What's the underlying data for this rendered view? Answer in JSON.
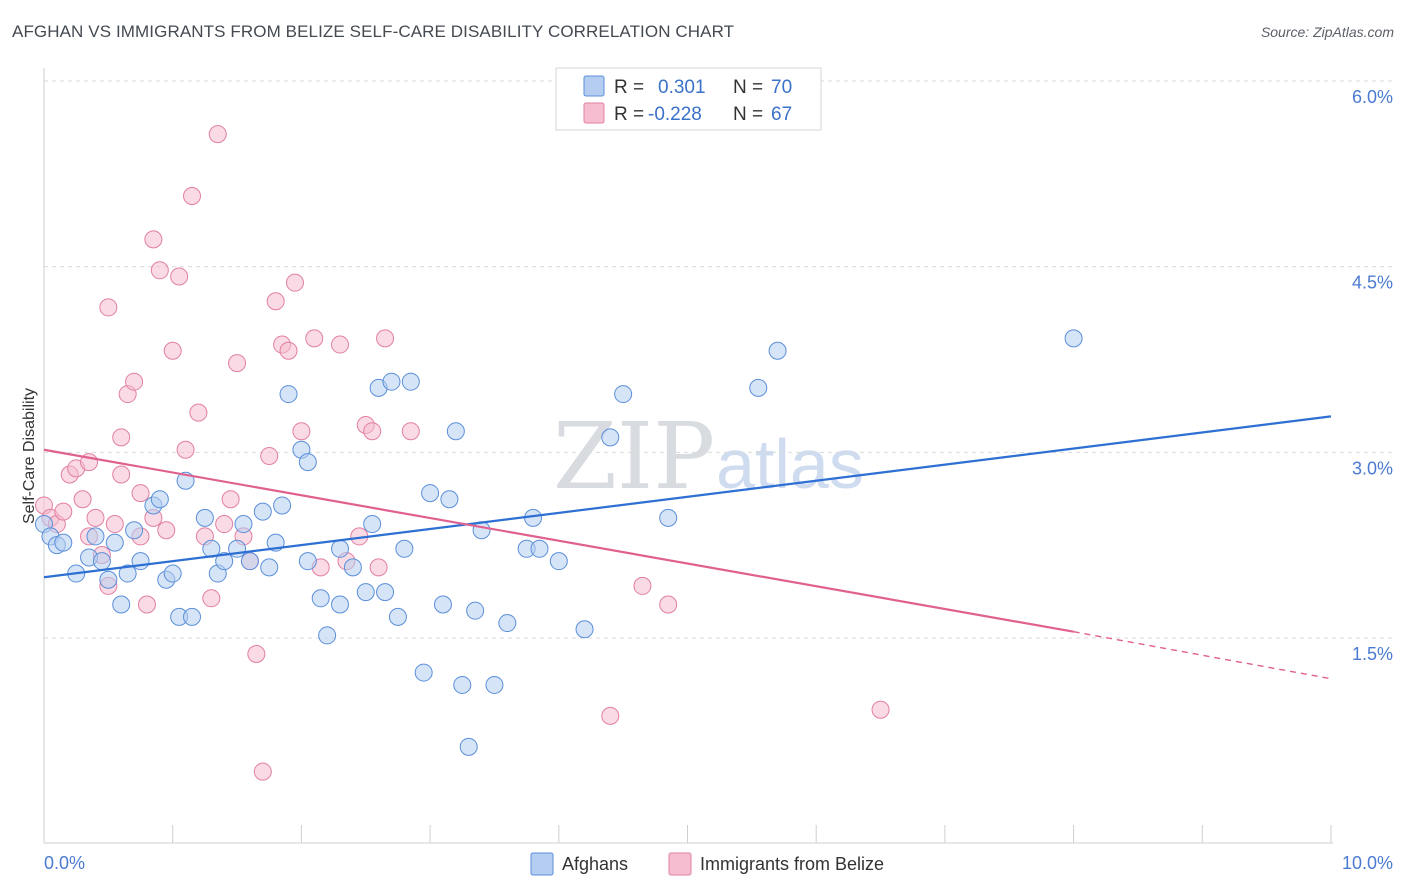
{
  "title": "AFGHAN VS IMMIGRANTS FROM BELIZE SELF-CARE DISABILITY CORRELATION CHART",
  "source": "Source: ZipAtlas.com",
  "watermark": {
    "zip": "ZIP",
    "atlas": "atlas"
  },
  "chart_data": {
    "type": "scatter",
    "xlabel": "",
    "ylabel": "Self-Care Disability",
    "xlim": [
      0,
      10
    ],
    "ylim": [
      0,
      6.2
    ],
    "x_tick_labels": {
      "left": "0.0%",
      "right": "10.0%"
    },
    "y_ticks": [
      {
        "value": 6.0,
        "label": "6.0%"
      },
      {
        "value": 4.5,
        "label": "4.5%"
      },
      {
        "value": 3.0,
        "label": "3.0%"
      },
      {
        "value": 1.5,
        "label": "1.5%"
      }
    ],
    "legend": {
      "rows": [
        {
          "r_label": "R =",
          "r_value": "0.301",
          "n_label": "N =",
          "n_value": "70"
        },
        {
          "r_label": "R =",
          "r_value": "-0.228",
          "n_label": "N =",
          "n_value": "67"
        }
      ]
    },
    "colors": {
      "afghans_fill": "#b4cdf1",
      "afghans_stroke": "#5b8fd9",
      "afghans_line": "#2d6fd3",
      "belize_fill": "#f6bdd0",
      "belize_stroke": "#e27fa3",
      "belize_line": "#e0608f",
      "tick": "#4b7bd1"
    },
    "series": [
      {
        "name": "Afghans",
        "trend": {
          "x0": 0.0,
          "y0": 2.12,
          "x1": 10.0,
          "y1": 3.42
        },
        "points": [
          [
            0.0,
            2.55
          ],
          [
            0.05,
            2.45
          ],
          [
            0.1,
            2.38
          ],
          [
            0.15,
            2.4
          ],
          [
            0.25,
            2.15
          ],
          [
            0.35,
            2.28
          ],
          [
            0.4,
            2.45
          ],
          [
            0.45,
            2.25
          ],
          [
            0.5,
            2.1
          ],
          [
            0.55,
            2.4
          ],
          [
            0.6,
            1.9
          ],
          [
            0.65,
            2.15
          ],
          [
            0.7,
            2.5
          ],
          [
            0.75,
            2.25
          ],
          [
            0.85,
            2.7
          ],
          [
            0.9,
            2.75
          ],
          [
            0.95,
            2.1
          ],
          [
            1.0,
            2.15
          ],
          [
            1.05,
            1.8
          ],
          [
            1.1,
            2.9
          ],
          [
            1.15,
            1.8
          ],
          [
            1.25,
            2.6
          ],
          [
            1.3,
            2.35
          ],
          [
            1.35,
            2.15
          ],
          [
            1.4,
            2.25
          ],
          [
            1.5,
            2.35
          ],
          [
            1.55,
            2.55
          ],
          [
            1.6,
            2.25
          ],
          [
            1.7,
            2.65
          ],
          [
            1.75,
            2.2
          ],
          [
            1.8,
            2.4
          ],
          [
            1.85,
            2.7
          ],
          [
            1.9,
            3.6
          ],
          [
            2.0,
            3.15
          ],
          [
            2.05,
            3.05
          ],
          [
            2.05,
            2.25
          ],
          [
            2.15,
            1.95
          ],
          [
            2.2,
            1.65
          ],
          [
            2.3,
            1.9
          ],
          [
            2.3,
            2.35
          ],
          [
            2.4,
            2.2
          ],
          [
            2.5,
            2.0
          ],
          [
            2.55,
            2.55
          ],
          [
            2.6,
            3.65
          ],
          [
            2.65,
            2.0
          ],
          [
            2.7,
            3.7
          ],
          [
            2.75,
            1.8
          ],
          [
            2.8,
            2.35
          ],
          [
            2.85,
            3.7
          ],
          [
            2.95,
            1.35
          ],
          [
            3.0,
            2.8
          ],
          [
            3.1,
            1.9
          ],
          [
            3.15,
            2.75
          ],
          [
            3.2,
            3.3
          ],
          [
            3.25,
            1.25
          ],
          [
            3.3,
            0.75
          ],
          [
            3.35,
            1.85
          ],
          [
            3.4,
            2.5
          ],
          [
            3.5,
            1.25
          ],
          [
            3.6,
            1.75
          ],
          [
            3.75,
            2.35
          ],
          [
            3.85,
            2.35
          ],
          [
            3.8,
            2.6
          ],
          [
            4.0,
            2.25
          ],
          [
            4.2,
            1.7
          ],
          [
            4.4,
            3.25
          ],
          [
            4.5,
            3.6
          ],
          [
            4.85,
            2.6
          ],
          [
            5.55,
            3.65
          ],
          [
            5.7,
            3.95
          ],
          [
            8.0,
            4.05
          ]
        ]
      },
      {
        "name": "Immigrants from Belize",
        "trend": {
          "x0": 0.0,
          "y0": 3.15,
          "x1": 8.0,
          "y1": 1.68,
          "dash_x1": 10.0,
          "dash_y1": 1.3
        },
        "points": [
          [
            0.0,
            2.7
          ],
          [
            0.05,
            2.6
          ],
          [
            0.1,
            2.55
          ],
          [
            0.15,
            2.65
          ],
          [
            0.2,
            2.95
          ],
          [
            0.25,
            3.0
          ],
          [
            0.3,
            2.75
          ],
          [
            0.35,
            3.05
          ],
          [
            0.35,
            2.45
          ],
          [
            0.4,
            2.6
          ],
          [
            0.45,
            2.3
          ],
          [
            0.5,
            2.05
          ],
          [
            0.5,
            4.3
          ],
          [
            0.55,
            2.55
          ],
          [
            0.6,
            2.95
          ],
          [
            0.6,
            3.25
          ],
          [
            0.65,
            3.6
          ],
          [
            0.7,
            3.7
          ],
          [
            0.75,
            2.45
          ],
          [
            0.75,
            2.8
          ],
          [
            0.8,
            1.9
          ],
          [
            0.85,
            4.85
          ],
          [
            0.85,
            2.6
          ],
          [
            0.9,
            4.6
          ],
          [
            0.95,
            2.5
          ],
          [
            1.0,
            3.95
          ],
          [
            1.05,
            4.55
          ],
          [
            1.1,
            3.15
          ],
          [
            1.15,
            5.2
          ],
          [
            1.2,
            3.45
          ],
          [
            1.25,
            2.45
          ],
          [
            1.3,
            1.95
          ],
          [
            1.35,
            5.7
          ],
          [
            1.4,
            2.55
          ],
          [
            1.45,
            2.75
          ],
          [
            1.5,
            3.85
          ],
          [
            1.55,
            2.45
          ],
          [
            1.6,
            2.25
          ],
          [
            1.65,
            1.5
          ],
          [
            1.7,
            0.55
          ],
          [
            1.75,
            3.1
          ],
          [
            1.8,
            4.35
          ],
          [
            1.85,
            4.0
          ],
          [
            1.9,
            3.95
          ],
          [
            1.95,
            4.5
          ],
          [
            2.0,
            3.3
          ],
          [
            2.1,
            4.05
          ],
          [
            2.15,
            2.2
          ],
          [
            2.3,
            4.0
          ],
          [
            2.35,
            2.25
          ],
          [
            2.45,
            2.45
          ],
          [
            2.5,
            3.35
          ],
          [
            2.55,
            3.3
          ],
          [
            2.6,
            2.2
          ],
          [
            2.65,
            4.05
          ],
          [
            2.85,
            3.3
          ],
          [
            4.4,
            1.0
          ],
          [
            4.65,
            2.05
          ],
          [
            4.85,
            1.9
          ],
          [
            6.5,
            1.05
          ]
        ]
      }
    ],
    "bottom_legend": [
      "Afghans",
      "Immigrants from Belize"
    ]
  }
}
